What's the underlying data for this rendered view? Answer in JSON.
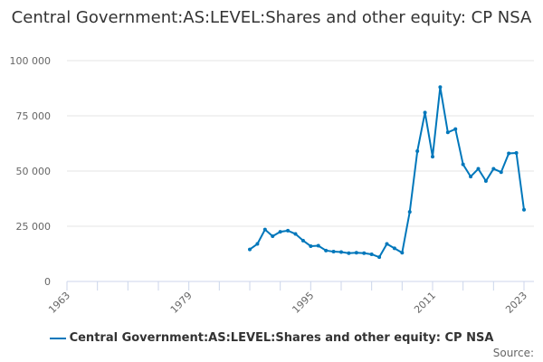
{
  "chart_data": {
    "type": "line",
    "title": "Central Government:AS:LEVEL:Shares and other equity: CP NSA",
    "xlim": [
      1963,
      2023
    ],
    "ylim": [
      0,
      100000
    ],
    "x_ticks": [
      1963,
      1979,
      1995,
      2011,
      2023
    ],
    "y_ticks": [
      0,
      25000,
      50000,
      75000,
      100000
    ],
    "y_tick_labels": [
      "0",
      "25 000",
      "50 000",
      "75 000",
      "100 000"
    ],
    "grid": "horizontal",
    "legend": "bottom",
    "color": "#0077bb",
    "series": [
      {
        "name": "Central Government:AS:LEVEL:Shares and other equity: CP NSA",
        "x": [
          1987,
          1988,
          1989,
          1990,
          1991,
          1992,
          1993,
          1994,
          1995,
          1996,
          1997,
          1998,
          1999,
          2000,
          2001,
          2002,
          2003,
          2004,
          2005,
          2006,
          2007,
          2008,
          2009,
          2010,
          2011,
          2012,
          2013,
          2014,
          2015,
          2016,
          2017,
          2018,
          2019,
          2020,
          2021,
          2022,
          2023
        ],
        "values": [
          14500,
          17000,
          23500,
          20500,
          22500,
          23000,
          21500,
          18500,
          16000,
          16200,
          14000,
          13500,
          13300,
          12800,
          13000,
          12800,
          12300,
          11000,
          17000,
          15000,
          13000,
          31500,
          59000,
          76500,
          56500,
          88000,
          67500,
          69000,
          53000,
          47500,
          51000,
          45500,
          51000,
          49500,
          58000,
          58200,
          32500
        ]
      }
    ]
  },
  "source_label": "Source:"
}
